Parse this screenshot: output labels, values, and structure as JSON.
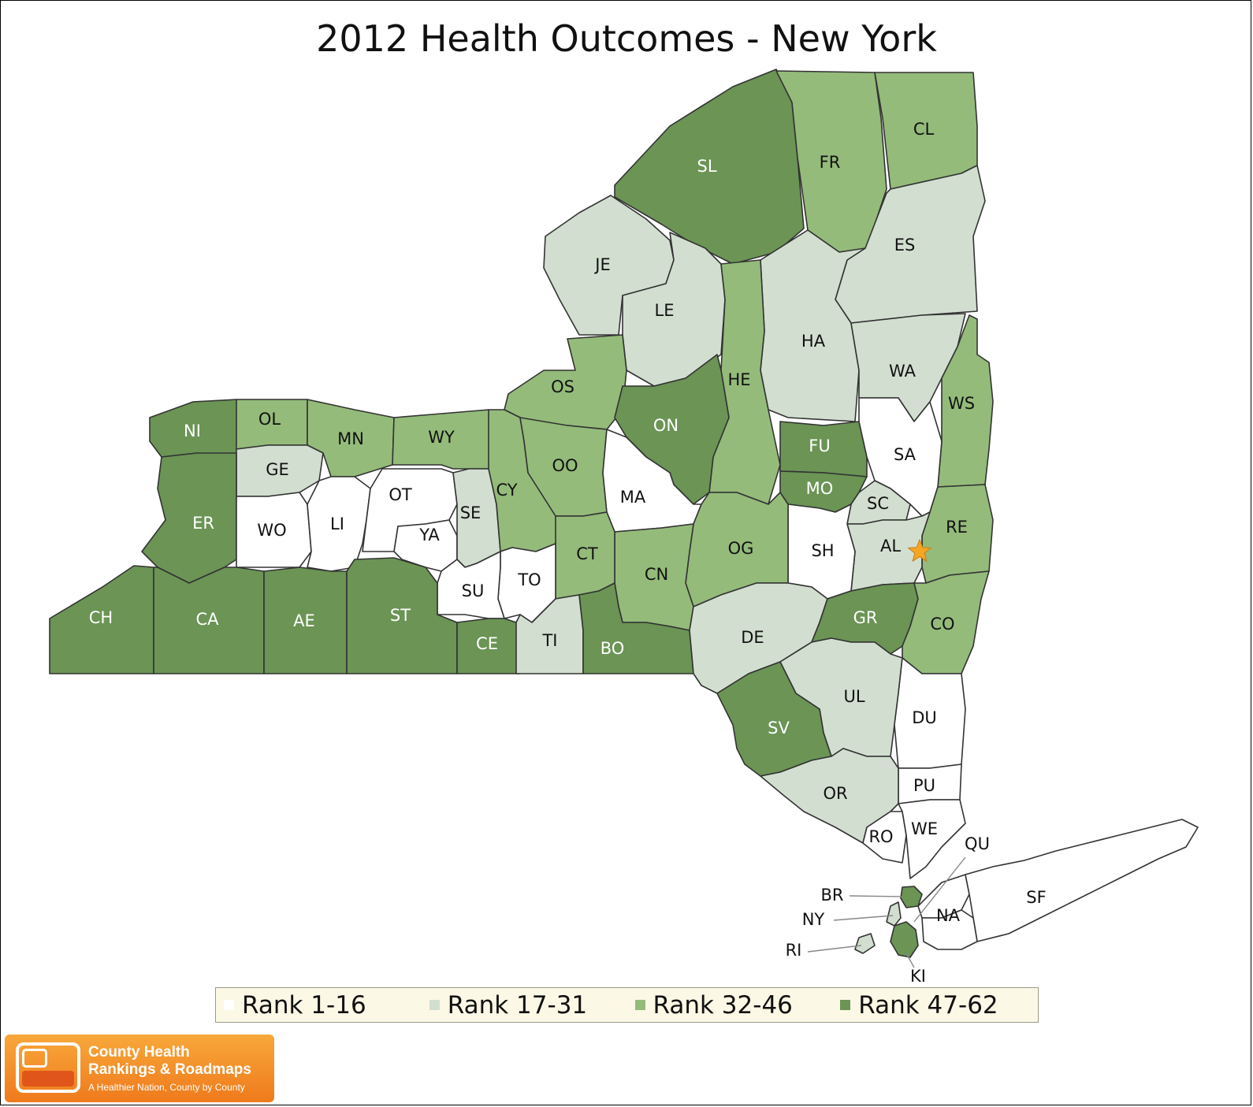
{
  "title": "2012 Health Outcomes - New York",
  "colors": {
    "rank_1_16": "#ffffff",
    "rank_17_31": "#d2dfd0",
    "rank_32_46": "#94bb7a",
    "rank_47_62": "#6b9455",
    "state_capital_star": "#f5a623"
  },
  "legend": [
    {
      "label": "Rank 1-16",
      "tier": 1
    },
    {
      "label": "Rank 17-31",
      "tier": 2
    },
    {
      "label": "Rank 32-46",
      "tier": 3
    },
    {
      "label": "Rank 47-62",
      "tier": 4
    }
  ],
  "counties": [
    {
      "abbr": "SL",
      "tier": 4
    },
    {
      "abbr": "FR",
      "tier": 3
    },
    {
      "abbr": "CL",
      "tier": 3
    },
    {
      "abbr": "JE",
      "tier": 2
    },
    {
      "abbr": "LE",
      "tier": 2
    },
    {
      "abbr": "ES",
      "tier": 2
    },
    {
      "abbr": "HA",
      "tier": 2
    },
    {
      "abbr": "HE",
      "tier": 3
    },
    {
      "abbr": "WA",
      "tier": 2
    },
    {
      "abbr": "WS",
      "tier": 3
    },
    {
      "abbr": "OS",
      "tier": 3
    },
    {
      "abbr": "ON",
      "tier": 4
    },
    {
      "abbr": "NI",
      "tier": 4
    },
    {
      "abbr": "OL",
      "tier": 3
    },
    {
      "abbr": "MN",
      "tier": 3
    },
    {
      "abbr": "WY",
      "tier": 3
    },
    {
      "abbr": "GE",
      "tier": 2
    },
    {
      "abbr": "ER",
      "tier": 4
    },
    {
      "abbr": "WO",
      "tier": 1
    },
    {
      "abbr": "LI",
      "tier": 1
    },
    {
      "abbr": "OT",
      "tier": 1
    },
    {
      "abbr": "YA",
      "tier": 1
    },
    {
      "abbr": "SE",
      "tier": 2
    },
    {
      "abbr": "CY",
      "tier": 3
    },
    {
      "abbr": "OO",
      "tier": 3
    },
    {
      "abbr": "MA",
      "tier": 1
    },
    {
      "abbr": "FU",
      "tier": 4
    },
    {
      "abbr": "MO",
      "tier": 4
    },
    {
      "abbr": "SA",
      "tier": 1
    },
    {
      "abbr": "SC",
      "tier": 2
    },
    {
      "abbr": "RE",
      "tier": 3
    },
    {
      "abbr": "AL",
      "tier": 2
    },
    {
      "abbr": "SH",
      "tier": 1
    },
    {
      "abbr": "OG",
      "tier": 3
    },
    {
      "abbr": "CN",
      "tier": 3
    },
    {
      "abbr": "CT",
      "tier": 3
    },
    {
      "abbr": "TO",
      "tier": 1
    },
    {
      "abbr": "SU",
      "tier": 1
    },
    {
      "abbr": "CH",
      "tier": 4
    },
    {
      "abbr": "CA",
      "tier": 4
    },
    {
      "abbr": "AE",
      "tier": 4
    },
    {
      "abbr": "ST",
      "tier": 4
    },
    {
      "abbr": "CE",
      "tier": 4
    },
    {
      "abbr": "TI",
      "tier": 2
    },
    {
      "abbr": "BO",
      "tier": 4
    },
    {
      "abbr": "DE",
      "tier": 2
    },
    {
      "abbr": "GR",
      "tier": 4
    },
    {
      "abbr": "CO",
      "tier": 3
    },
    {
      "abbr": "UL",
      "tier": 2
    },
    {
      "abbr": "SV",
      "tier": 4
    },
    {
      "abbr": "DU",
      "tier": 1
    },
    {
      "abbr": "PU",
      "tier": 1
    },
    {
      "abbr": "OR",
      "tier": 2
    },
    {
      "abbr": "RO",
      "tier": 1
    },
    {
      "abbr": "WE",
      "tier": 1
    },
    {
      "abbr": "QU",
      "tier": 1
    },
    {
      "abbr": "SF",
      "tier": 1
    },
    {
      "abbr": "BR",
      "tier": 4
    },
    {
      "abbr": "NY",
      "tier": 2
    },
    {
      "abbr": "NA",
      "tier": 1
    },
    {
      "abbr": "RI",
      "tier": 2
    },
    {
      "abbr": "KI",
      "tier": 4
    }
  ],
  "logo": {
    "line1": "County Health",
    "line2": "Rankings & Roadmaps",
    "line3": "A Healthier Nation, County by County"
  }
}
